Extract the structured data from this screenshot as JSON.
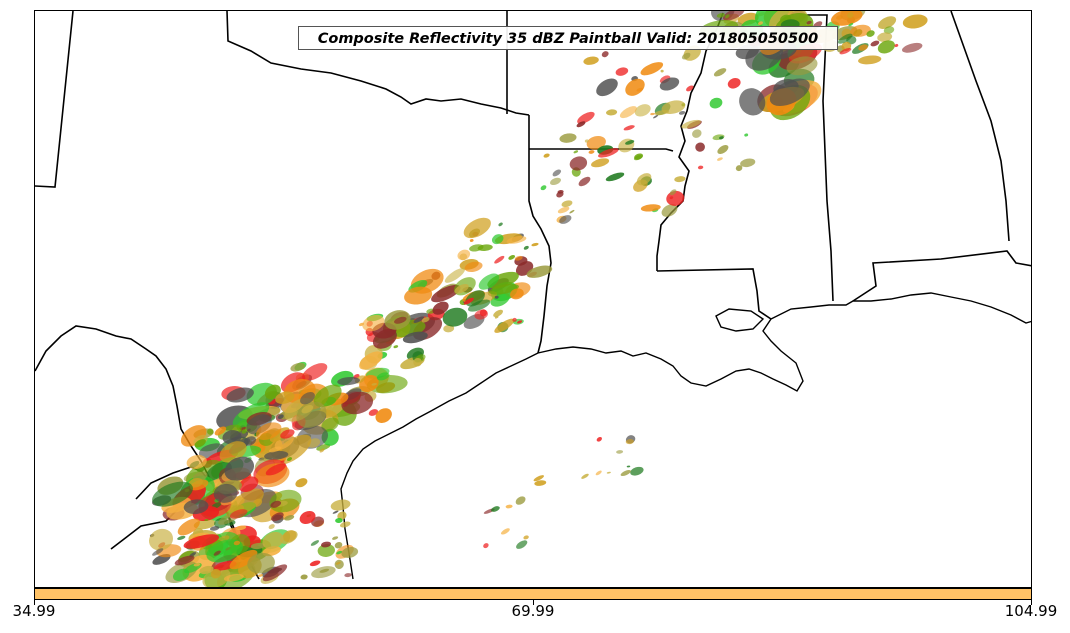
{
  "title": "Composite Reflectivity 35 dBZ Paintball Valid: 201805050500",
  "colorbar": {
    "ticks": [
      "34.99",
      "69.99",
      "104.99"
    ],
    "tick_values": [
      34.99,
      69.99,
      104.99
    ],
    "color": "#ffc266"
  },
  "paintball_colors": [
    "#ee2020",
    "#f08a10",
    "#f5b040",
    "#2cc82c",
    "#1f7a1f",
    "#8b2a2a",
    "#9a9a3c",
    "#505050",
    "#6aa60a",
    "#c8b040",
    "#d0a020"
  ],
  "map": {
    "region": "Southern Plains and Gulf Coast",
    "boundaries": "state lines and coastline"
  }
}
